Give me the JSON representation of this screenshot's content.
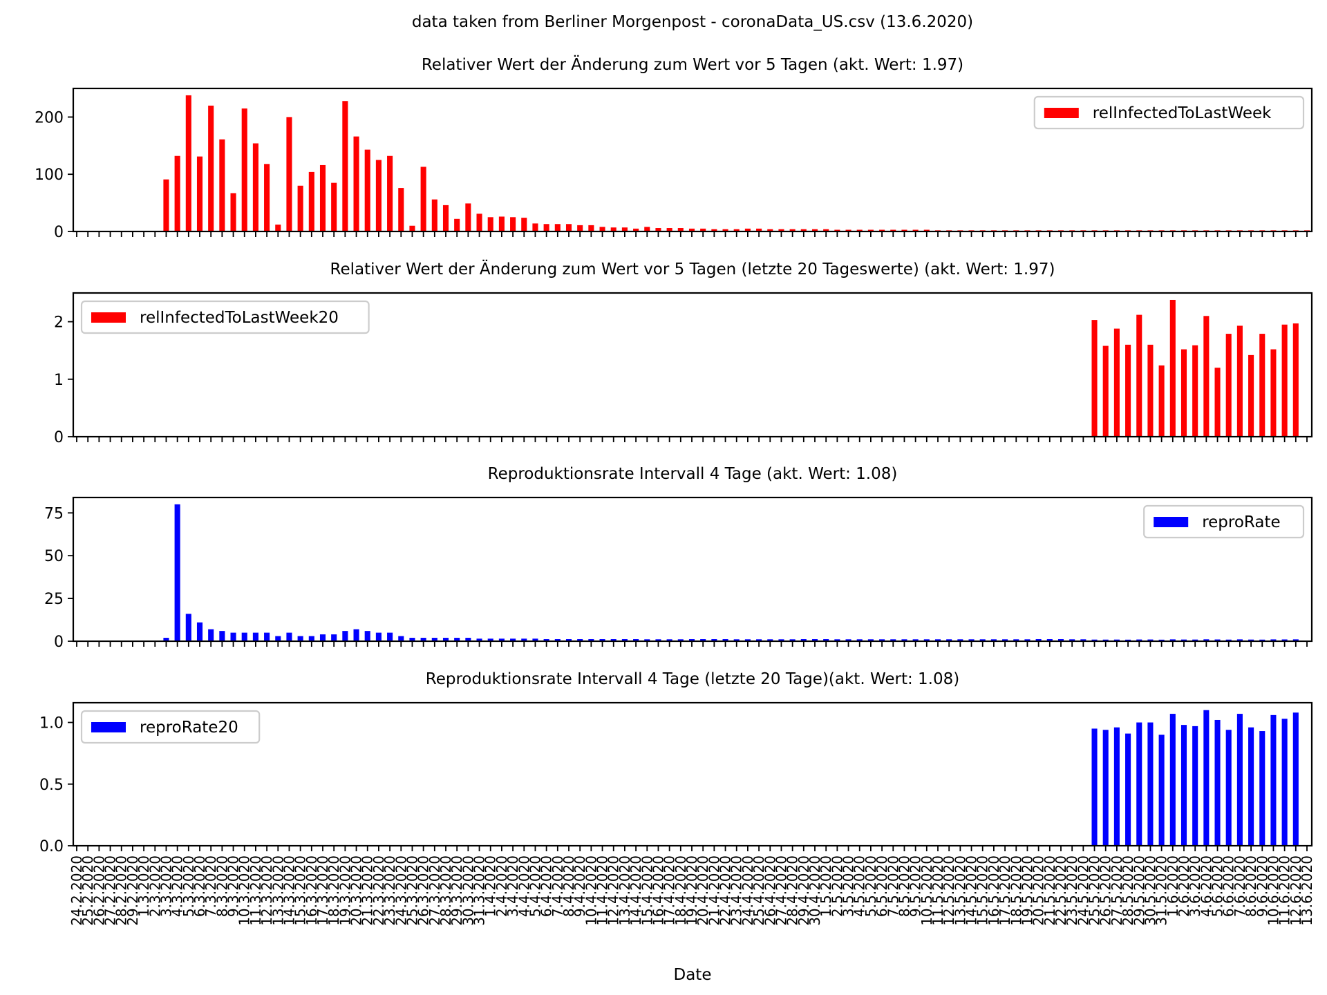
{
  "figure": {
    "suptitle": "data taken from Berliner Morgenpost - coronaData_US.csv (13.6.2020)",
    "xlabel": "Date"
  },
  "chart_data": [
    {
      "type": "bar",
      "title": "Relativer Wert der Änderung zum Wert vor 5 Tagen (akt. Wert: 1.97)",
      "series": [
        {
          "name": "relInfectedToLastWeek",
          "values": [
            0,
            0,
            0,
            0,
            0,
            0,
            0,
            0,
            91,
            132,
            238,
            131,
            220,
            161,
            67,
            215,
            154,
            118,
            12,
            200,
            80,
            104,
            116,
            85,
            228,
            166,
            143,
            125,
            132,
            76,
            10,
            113,
            56,
            46,
            22,
            49,
            31,
            25,
            26,
            25,
            24,
            14,
            13,
            13,
            13,
            11,
            11,
            8,
            7,
            7,
            5,
            8,
            6,
            6,
            6,
            5,
            5,
            4,
            4,
            4,
            5,
            5,
            4,
            4,
            4,
            4,
            4,
            4,
            3,
            3,
            3,
            3,
            3,
            3,
            3,
            3,
            3,
            2,
            2,
            2,
            2,
            2,
            2,
            2,
            2,
            2,
            2,
            2,
            2,
            2,
            2,
            2,
            2,
            2,
            2,
            2,
            2,
            2,
            2,
            2,
            2,
            2,
            2,
            2,
            2,
            2,
            2,
            2,
            2,
            2,
            1.97
          ]
        }
      ],
      "color": "#ff0000",
      "ylim": [
        0,
        250
      ],
      "yticks": [
        0,
        100,
        200
      ],
      "ytick_labels": [
        "0",
        "100",
        "200"
      ],
      "legend_loc": "upper right"
    },
    {
      "type": "bar",
      "title": "Relativer Wert der Änderung zum Wert vor 5 Tagen (letzte 20 Tageswerte) (akt. Wert: 1.97)",
      "series": [
        {
          "name": "relInfectedToLastWeek20",
          "values": [
            0,
            0,
            0,
            0,
            0,
            0,
            0,
            0,
            0,
            0,
            0,
            0,
            0,
            0,
            0,
            0,
            0,
            0,
            0,
            0,
            0,
            0,
            0,
            0,
            0,
            0,
            0,
            0,
            0,
            0,
            0,
            0,
            0,
            0,
            0,
            0,
            0,
            0,
            0,
            0,
            0,
            0,
            0,
            0,
            0,
            0,
            0,
            0,
            0,
            0,
            0,
            0,
            0,
            0,
            0,
            0,
            0,
            0,
            0,
            0,
            0,
            0,
            0,
            0,
            0,
            0,
            0,
            0,
            0,
            0,
            0,
            0,
            0,
            0,
            0,
            0,
            0,
            0,
            0,
            0,
            0,
            0,
            0,
            0,
            0,
            0,
            0,
            0,
            0,
            0,
            0,
            2.03,
            1.58,
            1.88,
            1.6,
            2.12,
            1.6,
            1.24,
            2.38,
            1.52,
            1.59,
            2.1,
            1.2,
            1.79,
            1.93,
            1.42,
            1.79,
            1.52,
            1.95,
            1.97
          ]
        }
      ],
      "color": "#ff0000",
      "ylim": [
        0,
        2.5
      ],
      "yticks": [
        0,
        1,
        2
      ],
      "ytick_labels": [
        "0",
        "1",
        "2"
      ],
      "legend_loc": "upper left"
    },
    {
      "type": "bar",
      "title": "Reproduktionsrate Intervall 4 Tage (akt. Wert: 1.08)",
      "series": [
        {
          "name": "reproRate",
          "values": [
            0,
            0,
            0,
            0,
            0,
            0,
            0,
            0,
            2,
            80,
            16,
            11,
            7,
            6,
            5,
            5,
            5,
            5,
            3,
            5,
            3,
            3,
            4,
            4,
            6,
            7,
            6,
            5,
            5,
            3,
            2,
            2,
            2,
            2,
            2,
            2,
            1.5,
            1.5,
            1.5,
            1.5,
            1.5,
            1.5,
            1.2,
            1.2,
            1.2,
            1.2,
            1.2,
            1.2,
            1.2,
            1.2,
            1.2,
            1.1,
            1.1,
            1.1,
            1.1,
            1.2,
            1.2,
            1.2,
            1.2,
            1.1,
            1.1,
            1.1,
            1.1,
            1.1,
            1.1,
            1.2,
            1.2,
            1.2,
            1.1,
            1.1,
            1.1,
            1.1,
            1.1,
            1.1,
            1.1,
            1.1,
            1.1,
            1.1,
            1.1,
            1.1,
            1.1,
            1.1,
            1.1,
            1.1,
            1.1,
            1.1,
            1.2,
            1.2,
            1.2,
            1.1,
            1.1,
            0.95,
            0.94,
            0.96,
            0.91,
            1.0,
            1.0,
            0.9,
            1.07,
            0.98,
            0.97,
            1.1,
            1.02,
            0.94,
            1.07,
            0.96,
            0.93,
            1.06,
            1.03,
            1.08
          ]
        }
      ],
      "color": "#0000ff",
      "ylim": [
        0,
        84
      ],
      "yticks": [
        0,
        25,
        50,
        75
      ],
      "ytick_labels": [
        "0",
        "25",
        "50",
        "75"
      ],
      "legend_loc": "upper right"
    },
    {
      "type": "bar",
      "title": "Reproduktionsrate Intervall 4 Tage (letzte 20 Tage)(akt. Wert: 1.08)",
      "series": [
        {
          "name": "reproRate20",
          "values": [
            0,
            0,
            0,
            0,
            0,
            0,
            0,
            0,
            0,
            0,
            0,
            0,
            0,
            0,
            0,
            0,
            0,
            0,
            0,
            0,
            0,
            0,
            0,
            0,
            0,
            0,
            0,
            0,
            0,
            0,
            0,
            0,
            0,
            0,
            0,
            0,
            0,
            0,
            0,
            0,
            0,
            0,
            0,
            0,
            0,
            0,
            0,
            0,
            0,
            0,
            0,
            0,
            0,
            0,
            0,
            0,
            0,
            0,
            0,
            0,
            0,
            0,
            0,
            0,
            0,
            0,
            0,
            0,
            0,
            0,
            0,
            0,
            0,
            0,
            0,
            0,
            0,
            0,
            0,
            0,
            0,
            0,
            0,
            0,
            0,
            0,
            0,
            0,
            0,
            0,
            0,
            0.95,
            0.94,
            0.96,
            0.91,
            1.0,
            1.0,
            0.9,
            1.07,
            0.98,
            0.97,
            1.1,
            1.02,
            0.94,
            1.07,
            0.96,
            0.93,
            1.06,
            1.03,
            1.08
          ]
        }
      ],
      "color": "#0000ff",
      "ylim": [
        0,
        1.16
      ],
      "yticks": [
        0,
        0.5,
        1
      ],
      "ytick_labels": [
        "0.0",
        "0.5",
        "1.0"
      ],
      "legend_loc": "upper left"
    }
  ],
  "xtick_labels": [
    "24.2.2020",
    "25.2.2020",
    "26.2.2020",
    "27.2.2020",
    "28.2.2020",
    "29.2.2020",
    "1.3.2020",
    "2.3.2020",
    "3.3.2020",
    "4.3.2020",
    "5.3.2020",
    "6.3.2020",
    "7.3.2020",
    "8.3.2020",
    "9.3.2020",
    "10.3.2020",
    "11.3.2020",
    "12.3.2020",
    "13.3.2020",
    "14.3.2020",
    "15.3.2020",
    "16.3.2020",
    "17.3.2020",
    "18.3.2020",
    "19.3.2020",
    "20.3.2020",
    "21.3.2020",
    "22.3.2020",
    "23.3.2020",
    "24.3.2020",
    "25.3.2020",
    "26.3.2020",
    "27.3.2020",
    "28.3.2020",
    "29.3.2020",
    "30.3.2020",
    "31.3.2020",
    "1.4.2020",
    "2.4.2020",
    "3.4.2020",
    "4.4.2020",
    "5.4.2020",
    "6.4.2020",
    "7.4.2020",
    "8.4.2020",
    "9.4.2020",
    "10.4.2020",
    "11.4.2020",
    "12.4.2020",
    "13.4.2020",
    "14.4.2020",
    "15.4.2020",
    "16.4.2020",
    "17.4.2020",
    "18.4.2020",
    "19.4.2020",
    "20.4.2020",
    "21.4.2020",
    "22.4.2020",
    "23.4.2020",
    "24.4.2020",
    "25.4.2020",
    "26.4.2020",
    "27.4.2020",
    "28.4.2020",
    "29.4.2020",
    "30.4.2020",
    "1.5.2020",
    "2.5.2020",
    "3.5.2020",
    "4.5.2020",
    "5.5.2020",
    "6.5.2020",
    "7.5.2020",
    "8.5.2020",
    "9.5.2020",
    "10.5.2020",
    "11.5.2020",
    "12.5.2020",
    "13.5.2020",
    "14.5.2020",
    "15.5.2020",
    "16.5.2020",
    "17.5.2020",
    "18.5.2020",
    "19.5.2020",
    "20.5.2020",
    "21.5.2020",
    "22.5.2020",
    "23.5.2020",
    "24.5.2020",
    "25.5.2020",
    "26.5.2020",
    "27.5.2020",
    "28.5.2020",
    "29.5.2020",
    "30.5.2020",
    "31.5.2020",
    "1.6.2020",
    "2.6.2020",
    "3.6.2020",
    "4.6.2020",
    "5.6.2020",
    "6.6.2020",
    "7.6.2020",
    "8.6.2020",
    "9.6.2020",
    "10.6.2020",
    "11.6.2020",
    "12.6.2020",
    "13.6.2020"
  ]
}
